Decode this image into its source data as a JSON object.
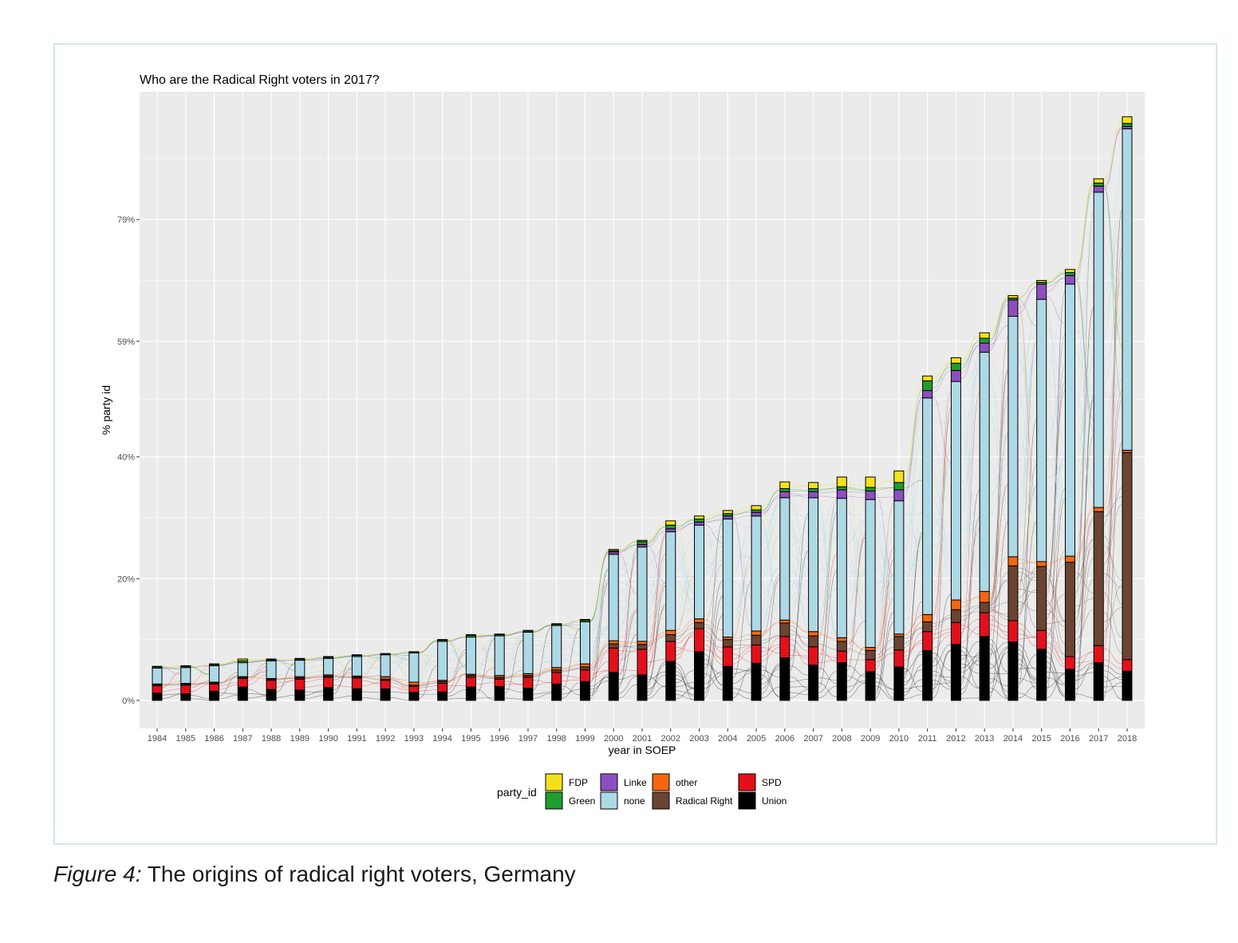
{
  "caption": {
    "label": "Figure 4:",
    "text": " The origins of radical right voters, Germany"
  },
  "colors": {
    "FDP": "#f5e11b",
    "Green": "#1f9e2c",
    "Linke": "#8d4fc0",
    "other": "#f5670f",
    "none": "#add8e6",
    "Radical Right": "#6b4432",
    "SPD": "#e3101b",
    "Union": "#000000",
    "panel": "#ebebeb",
    "grid": "#ffffff"
  },
  "chart_data": {
    "type": "bar",
    "subtype": "alluvial stacked bar",
    "title": "Who are the Radical Right voters in 2017?",
    "xlabel": "year in SOEP",
    "ylabel": "% party id",
    "ylim": [
      -4.6,
      100
    ],
    "y_ticks": [
      0,
      20,
      40,
      59,
      79
    ],
    "y_tick_labels": [
      "0%",
      "20%",
      "40%",
      "59%",
      "79%"
    ],
    "categories": [
      "1984",
      "1985",
      "1986",
      "1987",
      "1988",
      "1989",
      "1990",
      "1991",
      "1992",
      "1993",
      "1994",
      "1995",
      "1996",
      "1997",
      "1998",
      "1999",
      "2000",
      "2001",
      "2002",
      "2003",
      "2004",
      "2005",
      "2006",
      "2007",
      "2008",
      "2009",
      "2010",
      "2011",
      "2012",
      "2013",
      "2014",
      "2015",
      "2016",
      "2017",
      "2018"
    ],
    "stack_order": [
      "Union",
      "SPD",
      "Radical Right",
      "other",
      "none",
      "Linke",
      "Green",
      "FDP"
    ],
    "series": [
      {
        "name": "Union",
        "values": [
          1.2,
          1.1,
          1.5,
          2.2,
          1.8,
          1.7,
          2.1,
          1.9,
          1.9,
          1.3,
          1.4,
          2.2,
          2.3,
          2.0,
          2.7,
          3.1,
          4.6,
          4.2,
          6.4,
          8.0,
          5.6,
          6.1,
          7.0,
          5.8,
          6.2,
          4.7,
          5.5,
          8.2,
          9.2,
          10.5,
          9.6,
          8.4,
          5.1,
          6.2,
          4.8
        ]
      },
      {
        "name": "SPD",
        "values": [
          1.2,
          1.4,
          1.2,
          1.4,
          1.5,
          1.8,
          1.7,
          1.8,
          1.4,
          1.0,
          1.4,
          1.6,
          1.2,
          1.8,
          1.9,
          1.9,
          4.0,
          4.2,
          3.3,
          3.8,
          3.2,
          3.0,
          3.5,
          3.0,
          1.9,
          2.0,
          2.8,
          3.1,
          3.6,
          3.9,
          3.5,
          3.1,
          2.1,
          2.8,
          1.9
        ]
      },
      {
        "name": "Radical Right",
        "values": [
          0.2,
          0.2,
          0.2,
          0.2,
          0.2,
          0.2,
          0.2,
          0.2,
          0.2,
          0.2,
          0.3,
          0.3,
          0.3,
          0.3,
          0.4,
          0.5,
          0.7,
          0.8,
          1.1,
          1.0,
          1.2,
          1.6,
          2.2,
          1.8,
          1.6,
          1.5,
          2.2,
          1.6,
          2.1,
          1.7,
          9.0,
          10.5,
          15.5,
          22.0,
          34.0
        ]
      },
      {
        "name": "other",
        "values": [
          0.1,
          0.1,
          0.1,
          0.1,
          0.1,
          0.2,
          0.2,
          0.1,
          0.4,
          0.5,
          0.2,
          0.2,
          0.3,
          0.3,
          0.4,
          0.5,
          0.5,
          0.5,
          0.7,
          0.6,
          0.4,
          0.7,
          0.5,
          0.7,
          0.6,
          0.5,
          0.4,
          1.2,
          1.6,
          1.8,
          1.5,
          0.8,
          1.0,
          0.7,
          0.4
        ]
      },
      {
        "name": "none",
        "values": [
          2.6,
          2.6,
          2.7,
          2.3,
          2.9,
          2.7,
          2.7,
          3.2,
          3.6,
          4.8,
          6.4,
          6.1,
          6.5,
          6.8,
          6.9,
          6.9,
          14.2,
          15.5,
          16.2,
          15.4,
          19.4,
          18.9,
          20.1,
          22.0,
          22.9,
          24.3,
          21.9,
          35.6,
          35.9,
          39.3,
          39.5,
          43.1,
          44.7,
          51.8,
          52.8
        ]
      },
      {
        "name": "Linke",
        "values": [
          0,
          0,
          0,
          0,
          0,
          0,
          0,
          0,
          0,
          0,
          0,
          0,
          0,
          0,
          0,
          0,
          0.4,
          0.4,
          0.5,
          0.5,
          0.5,
          0.6,
          1.0,
          1.0,
          1.4,
          1.4,
          1.8,
          1.2,
          1.8,
          1.5,
          2.7,
          2.5,
          1.4,
          1.0,
          0.4
        ]
      },
      {
        "name": "Green",
        "values": [
          0.2,
          0.2,
          0.2,
          0.3,
          0.2,
          0.2,
          0.2,
          0.2,
          0.1,
          0.1,
          0.2,
          0.3,
          0.2,
          0.2,
          0.2,
          0.3,
          0.2,
          0.5,
          0.6,
          0.5,
          0.4,
          0.4,
          0.5,
          0.5,
          0.5,
          0.6,
          1.2,
          1.6,
          1.2,
          0.8,
          0.3,
          0.3,
          0.5,
          0.5,
          0.5
        ]
      },
      {
        "name": "FDP",
        "values": [
          0.1,
          0.1,
          0.1,
          0.3,
          0.1,
          0.1,
          0.1,
          0.1,
          0.1,
          0.1,
          0.1,
          0.1,
          0.1,
          0.1,
          0.1,
          0.1,
          0.2,
          0.2,
          0.7,
          0.5,
          0.5,
          0.7,
          1.1,
          1.0,
          1.6,
          1.7,
          1.9,
          0.8,
          0.9,
          0.9,
          0.4,
          0.3,
          0.5,
          0.7,
          1.1
        ]
      }
    ],
    "legend": {
      "title": "party_id",
      "position": "bottom",
      "entries": [
        "FDP",
        "Green",
        "Linke",
        "none",
        "other",
        "Radical Right",
        "SPD",
        "Union"
      ]
    },
    "grid": true
  }
}
